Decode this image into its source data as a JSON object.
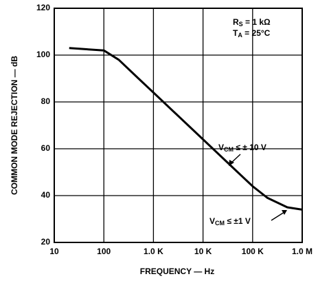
{
  "chart_data": {
    "type": "line",
    "xlabel": "FREQUENCY — Hz",
    "ylabel": "COMMON MODE REJECTION — dB",
    "x": [
      20,
      100,
      200,
      500,
      1000,
      10000,
      50000,
      100000,
      200000,
      500000,
      1000000
    ],
    "series": [
      {
        "color": "#000000",
        "values": [
          103,
          102,
          98,
          90,
          84,
          64,
          50,
          44,
          39,
          35,
          34
        ]
      }
    ],
    "xscale": "log",
    "xlim": [
      10,
      1000000
    ],
    "xticks": [
      10,
      100,
      {
        "value": 1000,
        "label": "1.0 K"
      },
      {
        "value": 10000,
        "label": "10 K"
      },
      {
        "value": 100000,
        "label": "100 K"
      },
      {
        "value": 1000000,
        "label": "1.0 M"
      }
    ],
    "ylim": [
      20,
      120
    ],
    "yticks": [
      20,
      40,
      60,
      80,
      100,
      120
    ],
    "grid": true,
    "annotations": [
      {
        "parts": [
          "R",
          "S",
          " = 1 kΩ"
        ]
      },
      {
        "parts": [
          "T",
          "A",
          " = 25°C"
        ]
      },
      {
        "parts": [
          "V",
          "CM",
          " ≤ ± 10 V"
        ]
      },
      {
        "parts": [
          "V",
          "CM",
          " ≤ ±1 V"
        ]
      }
    ]
  }
}
